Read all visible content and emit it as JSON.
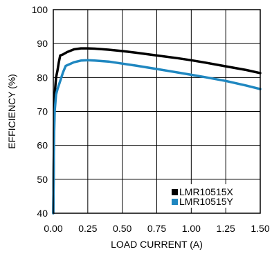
{
  "chart_data": {
    "type": "line",
    "xlabel": "LOAD CURRENT (A)",
    "ylabel": "EFFICIENCY (%)",
    "xlim": [
      0,
      1.5
    ],
    "ylim": [
      40,
      100
    ],
    "x_ticks": [
      "0.00",
      "0.25",
      "0.50",
      "0.75",
      "1.00",
      "1.25",
      "1.50"
    ],
    "y_ticks": [
      "40",
      "50",
      "60",
      "70",
      "80",
      "90",
      "100"
    ],
    "grid": true,
    "legend_position": "bottom-right",
    "series": [
      {
        "name": "LMR10515X",
        "color": "#000000",
        "x": [
          0.0,
          0.005,
          0.01,
          0.02,
          0.03,
          0.04,
          0.05,
          0.07,
          0.1,
          0.15,
          0.2,
          0.25,
          0.3,
          0.4,
          0.5,
          0.6,
          0.75,
          0.9,
          1.0,
          1.1,
          1.25,
          1.4,
          1.5
        ],
        "y": [
          40,
          64,
          75,
          80,
          82,
          84.5,
          86.5,
          86.8,
          87.5,
          88.3,
          88.6,
          88.6,
          88.5,
          88.2,
          87.8,
          87.3,
          86.5,
          85.7,
          85.1,
          84.4,
          83.3,
          82.2,
          81.3
        ]
      },
      {
        "name": "LMR10515Y",
        "color": "#1f87c0",
        "x": [
          0.0,
          0.005,
          0.01,
          0.02,
          0.03,
          0.05,
          0.07,
          0.09,
          0.1,
          0.15,
          0.2,
          0.25,
          0.3,
          0.4,
          0.5,
          0.6,
          0.75,
          0.9,
          1.0,
          1.1,
          1.25,
          1.4,
          1.5
        ],
        "y": [
          40,
          62,
          70,
          75,
          76.5,
          79,
          81.5,
          83.4,
          83.6,
          84.5,
          85,
          85.1,
          85,
          84.7,
          84.1,
          83.5,
          82.5,
          81.5,
          80.8,
          80.1,
          79,
          77.6,
          76.6
        ]
      }
    ]
  }
}
